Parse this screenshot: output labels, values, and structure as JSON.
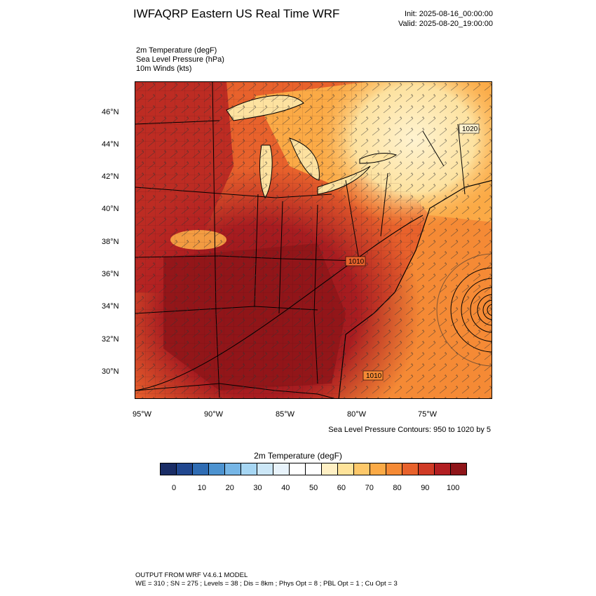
{
  "header": {
    "title": "IWFAQRP Eastern US Real Time WRF",
    "init": "Init: 2025-08-16_00:00:00",
    "valid": "Valid: 2025-08-20_19:00:00"
  },
  "fields": {
    "line1": "2m Temperature   (degF)",
    "line2": "Sea Level Pressure   (hPa)",
    "line3": "10m Winds   (kts)"
  },
  "axes": {
    "lat_labels": [
      "46°N",
      "44°N",
      "42°N",
      "40°N",
      "38°N",
      "36°N",
      "34°N",
      "32°N",
      "30°N"
    ],
    "lon_labels": [
      "95°W",
      "90°W",
      "85°W",
      "80°W",
      "75°W"
    ]
  },
  "map_labels": {
    "pressure_1020": "1020",
    "pressure_1010": "1010",
    "pressure_1010b": "1010"
  },
  "contour_note": "Sea Level Pressure Contours: 950 to 1020 by 5",
  "legend": {
    "title": "2m Temperature  (degF)",
    "ticks": [
      "0",
      "10",
      "20",
      "30",
      "40",
      "50",
      "60",
      "70",
      "80",
      "90",
      "100"
    ],
    "colors": [
      "#1a2d66",
      "#21478f",
      "#2f6cb3",
      "#4d93d0",
      "#76b6e6",
      "#a6d6f3",
      "#cce7f7",
      "#e8f3fb",
      "#ffffff",
      "#ffffff",
      "#fff0c4",
      "#fee39a",
      "#fdc86a",
      "#fbaa46",
      "#f58a35",
      "#e8622c",
      "#d03b26",
      "#b21f22",
      "#8f1519"
    ]
  },
  "footer": {
    "line1": "OUTPUT FROM WRF V4.6.1 MODEL",
    "line2": "WE = 310 ; SN = 275 ; Levels = 38 ; Dis = 8km ; Phys Opt = 8 ; PBL Opt = 1 ; Cu Opt = 3"
  }
}
